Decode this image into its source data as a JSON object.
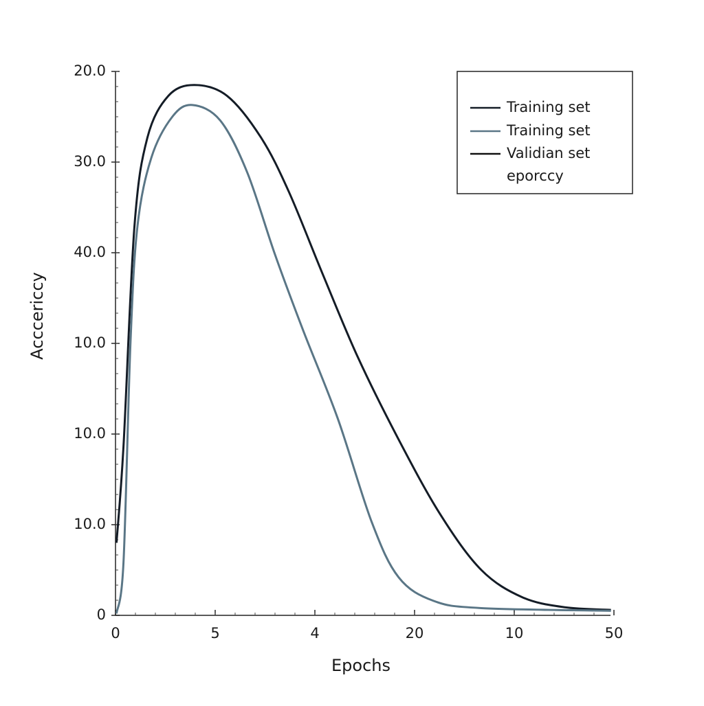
{
  "chart_data": {
    "type": "line",
    "ylabel": "Acccericcy",
    "xlabel": "Epochs",
    "xlim": [
      0,
      5
    ],
    "ylim": [
      0,
      6
    ],
    "xticks": [
      0,
      {
        "value": 1,
        "label": "5"
      },
      {
        "value": 2,
        "label": "4"
      },
      {
        "value": 3,
        "label": "20"
      },
      {
        "value": 4,
        "label": "10"
      },
      {
        "value": 5,
        "label": "50"
      }
    ],
    "yticks": [
      0,
      {
        "value": 1,
        "label": "10.0"
      },
      {
        "value": 2,
        "label": "10.0"
      },
      {
        "value": 3,
        "label": "10.0"
      },
      {
        "value": 4,
        "label": "40.0"
      },
      {
        "value": 5,
        "label": "30.0"
      },
      {
        "value": 6,
        "label": "20.0"
      }
    ],
    "series": [
      {
        "name": "Training set",
        "color": "#141c26",
        "x": [
          0.01,
          0.08,
          0.19,
          0.32,
          0.53,
          0.79,
          1.12,
          1.46,
          1.74,
          2.08,
          2.43,
          2.84,
          3.26,
          3.67,
          4.08,
          4.5,
          4.97
        ],
        "values": [
          0.8,
          1.86,
          4.29,
          5.27,
          5.73,
          5.85,
          5.73,
          5.27,
          4.67,
          3.76,
          2.85,
          1.94,
          1.11,
          0.5,
          0.2,
          0.09,
          0.06
        ]
      },
      {
        "name": "Training set",
        "color": "#5a7686",
        "x": [
          0.01,
          0.08,
          0.15,
          0.22,
          0.36,
          0.57,
          0.77,
          1.05,
          1.32,
          1.6,
          1.88,
          2.23,
          2.57,
          2.84,
          3.19,
          3.67,
          4.97
        ],
        "values": [
          0.02,
          0.58,
          3.0,
          4.29,
          5.05,
          5.5,
          5.63,
          5.46,
          4.89,
          3.98,
          3.15,
          2.17,
          1.03,
          0.42,
          0.16,
          0.08,
          0.05
        ]
      }
    ],
    "legend_extra": {
      "name": "Validian set",
      "note": "eporccy",
      "color": "#111111"
    }
  }
}
